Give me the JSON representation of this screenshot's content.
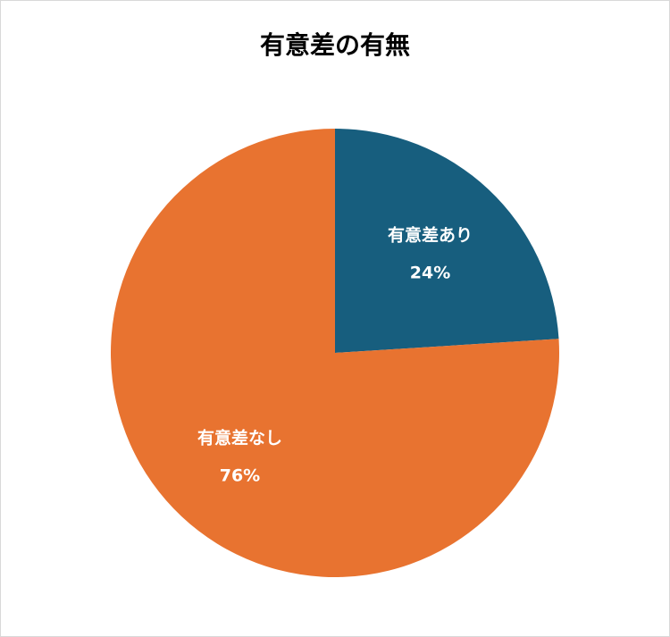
{
  "chart_data": {
    "type": "pie",
    "title": "有意差の有無",
    "slices": [
      {
        "label": "有意差あり",
        "value": 24,
        "value_label": "24%",
        "color": "#175e7e"
      },
      {
        "label": "有意差なし",
        "value": 76,
        "value_label": "76%",
        "color": "#e87330"
      }
    ],
    "start_angle": "12 o'clock, clockwise",
    "legend": "none"
  }
}
